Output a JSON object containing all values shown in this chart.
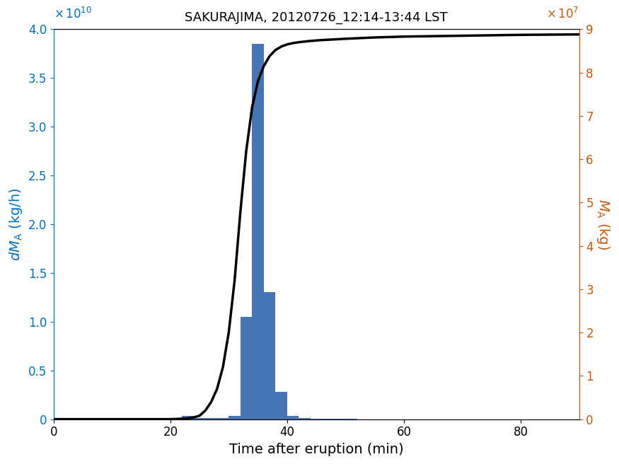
{
  "title": "SAKURAJIMA, 20120726_12:14-13:44 LST",
  "xlabel": "Time after eruption (min)",
  "ylabel_left": "dM_A (kg/h)",
  "ylabel_right": "M_A (kg)",
  "bar_color": "#4575b4",
  "line_color": "#000000",
  "left_axis_color": "#0070c0",
  "right_axis_color": "#c55a11",
  "xlim": [
    0,
    90
  ],
  "ylim_left": [
    0,
    40000000000.0
  ],
  "ylim_right": [
    0,
    90000000.0
  ],
  "bar_bins": [
    22,
    24,
    26,
    28,
    30,
    32,
    34,
    36,
    38,
    40,
    42,
    44,
    46,
    48,
    50,
    52,
    54,
    56,
    58,
    60,
    62,
    64,
    66,
    68,
    70,
    72,
    74,
    76,
    78,
    80,
    82,
    84,
    86,
    88,
    90
  ],
  "bar_heights": [
    340000000.0,
    150000000.0,
    130000000.0,
    140000000.0,
    350000000.0,
    10500000000.0,
    38500000000.0,
    13000000000.0,
    2800000000.0,
    320000000.0,
    120000000.0,
    60000000.0,
    35000000.0,
    20000000.0,
    10000000.0,
    5000000.0,
    3000000.0,
    2000000.0,
    1000000.0,
    500000.0,
    300000.0,
    200000.0,
    100000.0,
    50000.0,
    30000.0,
    20000.0,
    10000.0,
    5000.0,
    3000.0,
    2000.0,
    1000.0,
    500.0,
    300.0,
    100.0
  ],
  "cum_x": [
    0,
    20,
    22,
    23,
    24,
    25,
    26,
    27,
    28,
    29,
    30,
    31,
    32,
    33,
    34,
    35,
    36,
    37,
    38,
    39,
    40,
    41,
    42,
    44,
    46,
    50,
    55,
    60,
    70,
    80,
    90
  ],
  "cum_y": [
    0,
    0,
    100000.0,
    200000.0,
    400000.0,
    800000.0,
    2000000.0,
    4000000.0,
    7000000.0,
    12000000.0,
    20000000.0,
    32000000.0,
    48000000.0,
    62000000.0,
    72000000.0,
    78000000.0,
    81500000.0,
    83800000.0,
    85200000.0,
    86000000.0,
    86500000.0,
    86800000.0,
    87000000.0,
    87300000.0,
    87500000.0,
    87800000.0,
    88100000.0,
    88300000.0,
    88500000.0,
    88700000.0,
    88800000.0
  ]
}
